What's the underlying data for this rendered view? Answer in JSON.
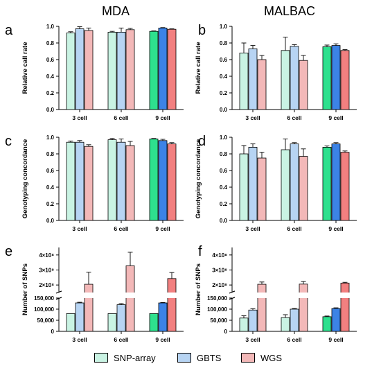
{
  "column_titles": [
    "MDA",
    "MALBAC"
  ],
  "legend": [
    {
      "label": "SNP-array",
      "color": "#c9f3e3"
    },
    {
      "label": "GBTS",
      "color": "#b7d4f3"
    },
    {
      "label": "WGS",
      "color": "#f3b8b8"
    }
  ],
  "colors": {
    "light": [
      "#c9f3e3",
      "#b7d4f3",
      "#f3b8b8"
    ],
    "dark": [
      "#2ee08e",
      "#3c83e6",
      "#f28080"
    ]
  },
  "chart_data": [
    {
      "panel": "a",
      "column": "MDA",
      "type": "bar",
      "ylabel": "Relative call rate",
      "categories": [
        "3 cell",
        "6 cell",
        "9 cell"
      ],
      "ylim": [
        0,
        1.0
      ],
      "yticks": [
        0.0,
        0.2,
        0.4,
        0.6,
        0.8,
        1.0
      ],
      "ytick_labels": [
        "0.0",
        "0.2",
        "0.4",
        "0.6",
        "0.8",
        "1.0"
      ],
      "series": [
        {
          "name": "SNP-array",
          "values": [
            0.92,
            0.93,
            0.94
          ],
          "errors": [
            0.015,
            0.01,
            0.005
          ]
        },
        {
          "name": "GBTS",
          "values": [
            0.97,
            0.93,
            0.98
          ],
          "errors": [
            0.025,
            0.05,
            0.005
          ]
        },
        {
          "name": "WGS",
          "values": [
            0.95,
            0.96,
            0.965
          ],
          "errors": [
            0.03,
            0.015,
            0.005
          ]
        }
      ]
    },
    {
      "panel": "b",
      "column": "MALBAC",
      "type": "bar",
      "ylabel": "Relative call rate",
      "categories": [
        "3 cell",
        "6 cell",
        "9 cell"
      ],
      "ylim": [
        0,
        1.0
      ],
      "yticks": [
        0.0,
        0.2,
        0.4,
        0.6,
        0.8,
        1.0
      ],
      "ytick_labels": [
        "0.0",
        "0.2",
        "0.4",
        "0.6",
        "0.8",
        "1.0"
      ],
      "series": [
        {
          "name": "SNP-array",
          "values": [
            0.68,
            0.71,
            0.755
          ],
          "errors": [
            0.12,
            0.16,
            0.02
          ]
        },
        {
          "name": "GBTS",
          "values": [
            0.73,
            0.76,
            0.77
          ],
          "errors": [
            0.04,
            0.02,
            0.02
          ]
        },
        {
          "name": "WGS",
          "values": [
            0.6,
            0.59,
            0.71
          ],
          "errors": [
            0.05,
            0.06,
            0.01
          ]
        }
      ]
    },
    {
      "panel": "c",
      "column": "MDA",
      "type": "bar",
      "ylabel": "Genotyping concordance",
      "categories": [
        "3 cell",
        "6 cell",
        "9 cell"
      ],
      "ylim": [
        0,
        1.0
      ],
      "yticks": [
        0.0,
        0.2,
        0.4,
        0.6,
        0.8,
        1.0
      ],
      "ytick_labels": [
        "0.0",
        "0.2",
        "0.4",
        "0.6",
        "0.8",
        "1.0"
      ],
      "series": [
        {
          "name": "SNP-array",
          "values": [
            0.94,
            0.97,
            0.98
          ],
          "errors": [
            0.015,
            0.015,
            0.005
          ]
        },
        {
          "name": "GBTS",
          "values": [
            0.94,
            0.94,
            0.96
          ],
          "errors": [
            0.02,
            0.04,
            0.015
          ]
        },
        {
          "name": "WGS",
          "values": [
            0.89,
            0.9,
            0.92
          ],
          "errors": [
            0.02,
            0.05,
            0.015
          ]
        }
      ]
    },
    {
      "panel": "d",
      "column": "MALBAC",
      "type": "bar",
      "ylabel": "Genotyping concordance",
      "categories": [
        "3 cell",
        "6 cell",
        "9 cell"
      ],
      "ylim": [
        0,
        1.0
      ],
      "yticks": [
        0.0,
        0.2,
        0.4,
        0.6,
        0.8,
        1.0
      ],
      "ytick_labels": [
        "0.0",
        "0.2",
        "0.4",
        "0.6",
        "0.8",
        "1.0"
      ],
      "series": [
        {
          "name": "SNP-array",
          "values": [
            0.8,
            0.85,
            0.88
          ],
          "errors": [
            0.1,
            0.13,
            0.015
          ]
        },
        {
          "name": "GBTS",
          "values": [
            0.88,
            0.92,
            0.92
          ],
          "errors": [
            0.04,
            0.015,
            0.015
          ]
        },
        {
          "name": "WGS",
          "values": [
            0.75,
            0.77,
            0.82
          ],
          "errors": [
            0.07,
            0.09,
            0.015
          ]
        }
      ]
    },
    {
      "panel": "e",
      "column": "MDA",
      "type": "bar",
      "ylabel": "Number of SNPs",
      "categories": [
        "3 cell",
        "6 cell",
        "9 cell"
      ],
      "axis_break": {
        "lower": [
          0,
          150000
        ],
        "upper": [
          150000000,
          450000000
        ]
      },
      "yticks_lower": [
        0,
        50000,
        100000,
        150000
      ],
      "ytick_labels_lower": [
        "0",
        "50,000",
        "100,000",
        "150,000"
      ],
      "yticks_upper": [
        200000000,
        300000000,
        400000000
      ],
      "ytick_labels_upper": [
        "2×10⁸",
        "3×10⁸",
        "4×10⁸"
      ],
      "series": [
        {
          "name": "SNP-array",
          "values": [
            80000,
            80000,
            80000
          ],
          "errors": [
            0,
            0,
            0
          ]
        },
        {
          "name": "GBTS",
          "values": [
            128000,
            120000,
            128000
          ],
          "errors": [
            3000,
            5000,
            2000
          ]
        },
        {
          "name": "WGS",
          "values": [
            205000000,
            328000000,
            243000000
          ],
          "errors": [
            80000000,
            90000000,
            40000000
          ]
        }
      ]
    },
    {
      "panel": "f",
      "column": "MALBAC",
      "type": "bar",
      "ylabel": "Number of SNPs",
      "categories": [
        "3 cell",
        "6 cell",
        "9 cell"
      ],
      "axis_break": {
        "lower": [
          0,
          150000
        ],
        "upper": [
          150000000,
          450000000
        ]
      },
      "yticks_lower": [
        0,
        50000,
        100000,
        150000
      ],
      "ytick_labels_lower": [
        "0",
        "50,000",
        "100,000",
        "150,000"
      ],
      "yticks_upper": [
        200000000,
        300000000,
        400000000
      ],
      "ytick_labels_upper": [
        "2×10⁸",
        "3×10⁸",
        "4×10⁸"
      ],
      "series": [
        {
          "name": "SNP-array",
          "values": [
            60000,
            62000,
            66000
          ],
          "errors": [
            10000,
            13000,
            3000
          ]
        },
        {
          "name": "GBTS",
          "values": [
            96000,
            100000,
            103000
          ],
          "errors": [
            6000,
            3000,
            3000
          ]
        },
        {
          "name": "WGS",
          "values": [
            205000000,
            206000000,
            213000000
          ],
          "errors": [
            15000000,
            17000000,
            5000000
          ]
        }
      ]
    }
  ]
}
